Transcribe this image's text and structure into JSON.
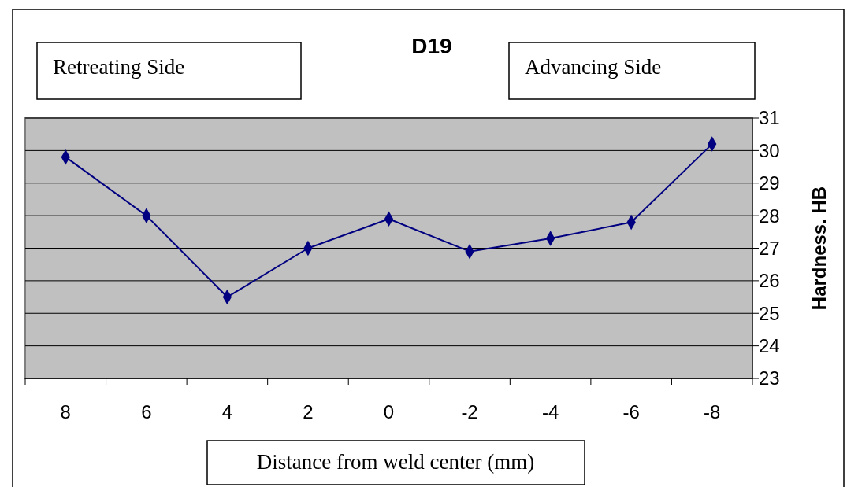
{
  "chart_data": {
    "type": "line",
    "title": "D19",
    "xlabel": "Distance from weld center (mm)",
    "ylabel": "Hardness. HB",
    "categories": [
      "8",
      "6",
      "4",
      "2",
      "0",
      "-2",
      "-4",
      "-6",
      "-8"
    ],
    "series": [
      {
        "color": "#000080",
        "values": [
          29.8,
          28.0,
          25.5,
          27.0,
          27.9,
          26.9,
          27.3,
          27.8,
          30.2
        ]
      }
    ],
    "ylim": [
      23,
      31
    ],
    "yticks": [
      23,
      24,
      25,
      26,
      27,
      28,
      29,
      30,
      31
    ],
    "grid": "y",
    "marker": "diamond",
    "annotations": [
      "Retreating Side",
      "Advancing Side"
    ]
  }
}
